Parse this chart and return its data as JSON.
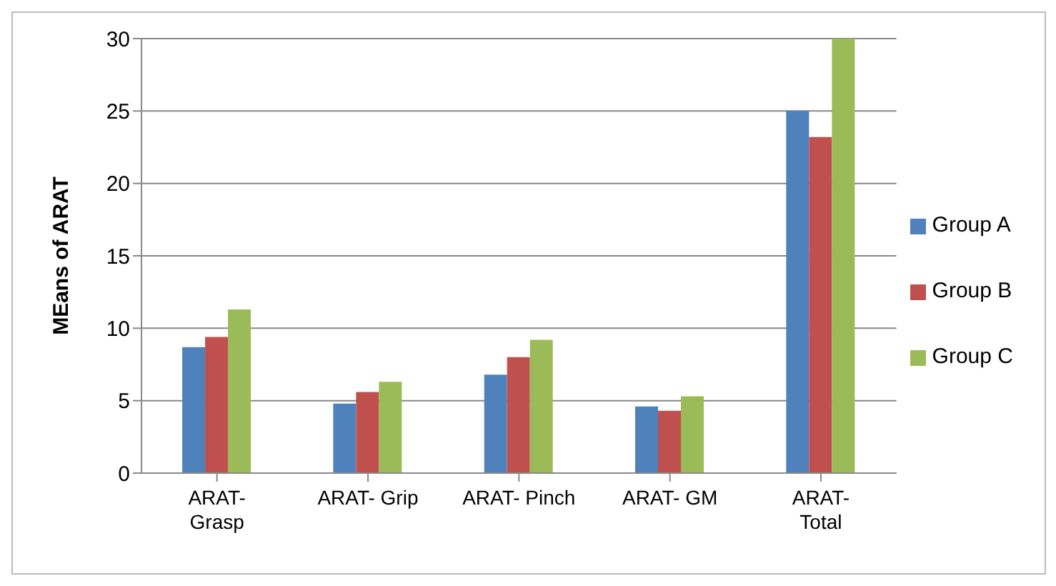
{
  "chart_data": {
    "type": "bar",
    "ylabel": "MEans of ARAT",
    "categories": [
      "ARAT-Grasp",
      "ARAT- Grip",
      "ARAT- Pinch",
      "ARAT- GM",
      "ARAT-Total"
    ],
    "series": [
      {
        "name": "Group A",
        "color": "#4f81bd",
        "values": [
          8.7,
          4.8,
          6.8,
          4.6,
          25
        ]
      },
      {
        "name": "Group B",
        "color": "#c0504d",
        "values": [
          9.4,
          5.6,
          8.0,
          4.3,
          23.2
        ]
      },
      {
        "name": "Group C",
        "color": "#9bbb59",
        "values": [
          11.3,
          6.3,
          9.2,
          5.3,
          30
        ]
      }
    ],
    "ylim": [
      0,
      30
    ],
    "yticks": [
      0,
      5,
      10,
      15,
      20,
      25,
      30
    ],
    "grid": "y",
    "legend": "right"
  }
}
